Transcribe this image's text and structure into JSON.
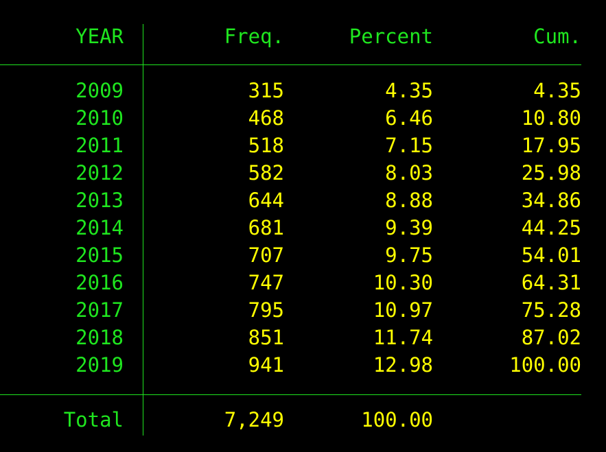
{
  "table": {
    "header": [
      "YEAR",
      "Freq.",
      "Percent",
      "Cum."
    ],
    "rows": [
      [
        "2009",
        "315",
        "4.35",
        "4.35"
      ],
      [
        "2010",
        "468",
        "6.46",
        "10.80"
      ],
      [
        "2011",
        "518",
        "7.15",
        "17.95"
      ],
      [
        "2012",
        "582",
        "8.03",
        "25.98"
      ],
      [
        "2013",
        "644",
        "8.88",
        "34.86"
      ],
      [
        "2014",
        "681",
        "9.39",
        "44.25"
      ],
      [
        "2015",
        "707",
        "9.75",
        "54.01"
      ],
      [
        "2016",
        "747",
        "10.30",
        "64.31"
      ],
      [
        "2017",
        "795",
        "10.97",
        "75.28"
      ],
      [
        "2018",
        "851",
        "11.74",
        "87.02"
      ],
      [
        "2019",
        "941",
        "12.98",
        "100.00"
      ]
    ],
    "total": [
      "Total",
      "7,249",
      "100.00"
    ]
  }
}
